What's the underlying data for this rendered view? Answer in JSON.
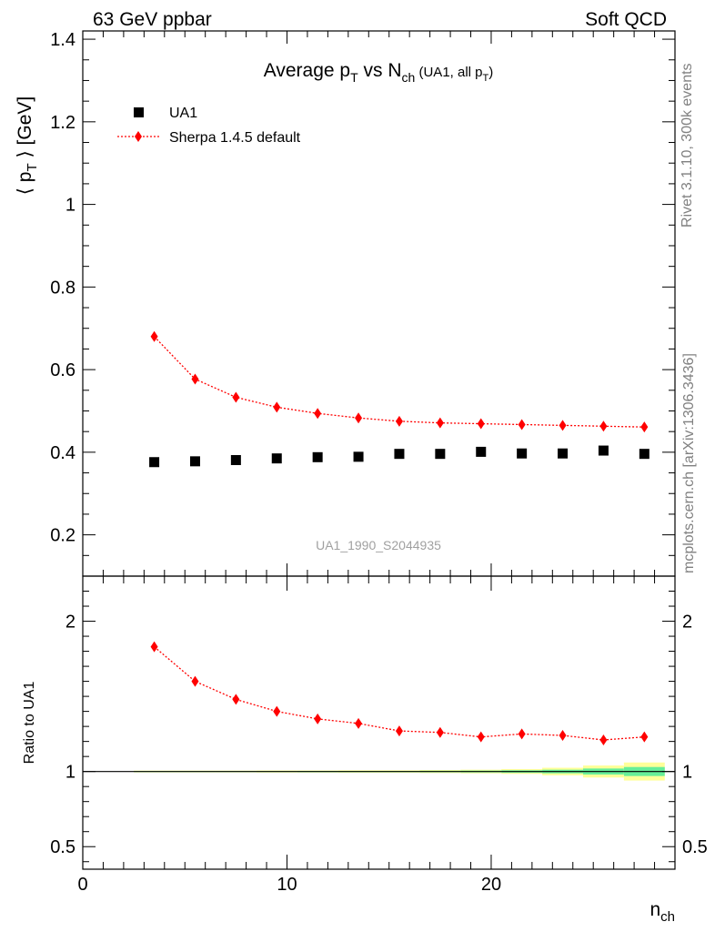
{
  "header": {
    "left": "63 GeV ppbar",
    "right": "Soft QCD"
  },
  "side_labels": {
    "rivet": "Rivet 3.1.10,  300k events",
    "mcplots": "mcplots.cern.ch [arXiv:1306.3436]"
  },
  "colors": {
    "data": "#000000",
    "mc": "#ff0000",
    "band_outer": "#ffff99",
    "band_inner": "#66ee99"
  },
  "chart_data": [
    {
      "type": "scatter",
      "title": {
        "main": "Average p",
        "sub1": "T",
        "mid": " vs N",
        "sub2": "ch",
        "tail1": " (UA1, all p",
        "sub3": "T",
        "tail2": ")"
      },
      "ylabel": {
        "pre": "⟨ p",
        "sub": "T",
        "post": " ⟩ [GeV]"
      },
      "watermark": "UA1_1990_S2044935",
      "xlim": [
        0,
        29
      ],
      "ylim": [
        0.1,
        1.42
      ],
      "yticks": [
        0.2,
        0.4,
        0.6,
        0.8,
        1,
        1.2,
        1.4
      ],
      "ytick_labels": [
        "0.2",
        "0.4",
        "0.6",
        "0.8",
        "1",
        "1.2",
        "1.4"
      ],
      "legend": {
        "placement": "top-left"
      },
      "series": [
        {
          "name": "UA1",
          "x": [
            3.5,
            5.5,
            7.5,
            9.5,
            11.5,
            13.5,
            15.5,
            17.5,
            19.5,
            21.5,
            23.5,
            25.5,
            27.5
          ],
          "y": [
            0.376,
            0.378,
            0.381,
            0.385,
            0.388,
            0.389,
            0.396,
            0.396,
            0.401,
            0.397,
            0.397,
            0.404,
            0.396
          ]
        },
        {
          "name": "Sherpa 1.4.5 default",
          "x": [
            3.5,
            5.5,
            7.5,
            9.5,
            11.5,
            13.5,
            15.5,
            17.5,
            19.5,
            21.5,
            23.5,
            25.5,
            27.5
          ],
          "y": [
            0.68,
            0.577,
            0.533,
            0.509,
            0.494,
            0.483,
            0.475,
            0.471,
            0.469,
            0.467,
            0.465,
            0.463,
            0.461
          ]
        }
      ]
    },
    {
      "type": "scatter",
      "ylabel": "Ratio to UA1",
      "xlabel": {
        "main": "n",
        "sub": "ch"
      },
      "xlim": [
        0,
        29
      ],
      "ylim": [
        0.35,
        2.3
      ],
      "xticks": [
        0,
        10,
        20
      ],
      "xtick_labels": [
        "0",
        "10",
        "20"
      ],
      "yticks": [
        0.5,
        1,
        2
      ],
      "ytick_labels": [
        "0.5",
        "1",
        "2"
      ],
      "series": [
        {
          "name": "Sherpa 1.4.5 default",
          "x": [
            3.5,
            5.5,
            7.5,
            9.5,
            11.5,
            13.5,
            15.5,
            17.5,
            19.5,
            21.5,
            23.5,
            25.5,
            27.5
          ],
          "y": [
            1.83,
            1.6,
            1.48,
            1.4,
            1.35,
            1.32,
            1.27,
            1.26,
            1.23,
            1.25,
            1.24,
            1.21,
            1.23
          ]
        }
      ],
      "band": {
        "x_edges": [
          2.5,
          4.5,
          6.5,
          8.5,
          10.5,
          12.5,
          14.5,
          16.5,
          18.5,
          20.5,
          22.5,
          24.5,
          26.5,
          28.5
        ],
        "outer": [
          0.006,
          0.006,
          0.006,
          0.007,
          0.007,
          0.008,
          0.008,
          0.01,
          0.012,
          0.016,
          0.025,
          0.04,
          0.06
        ],
        "inner": [
          0.003,
          0.003,
          0.003,
          0.003,
          0.004,
          0.004,
          0.004,
          0.005,
          0.006,
          0.008,
          0.012,
          0.02,
          0.03
        ]
      }
    }
  ]
}
